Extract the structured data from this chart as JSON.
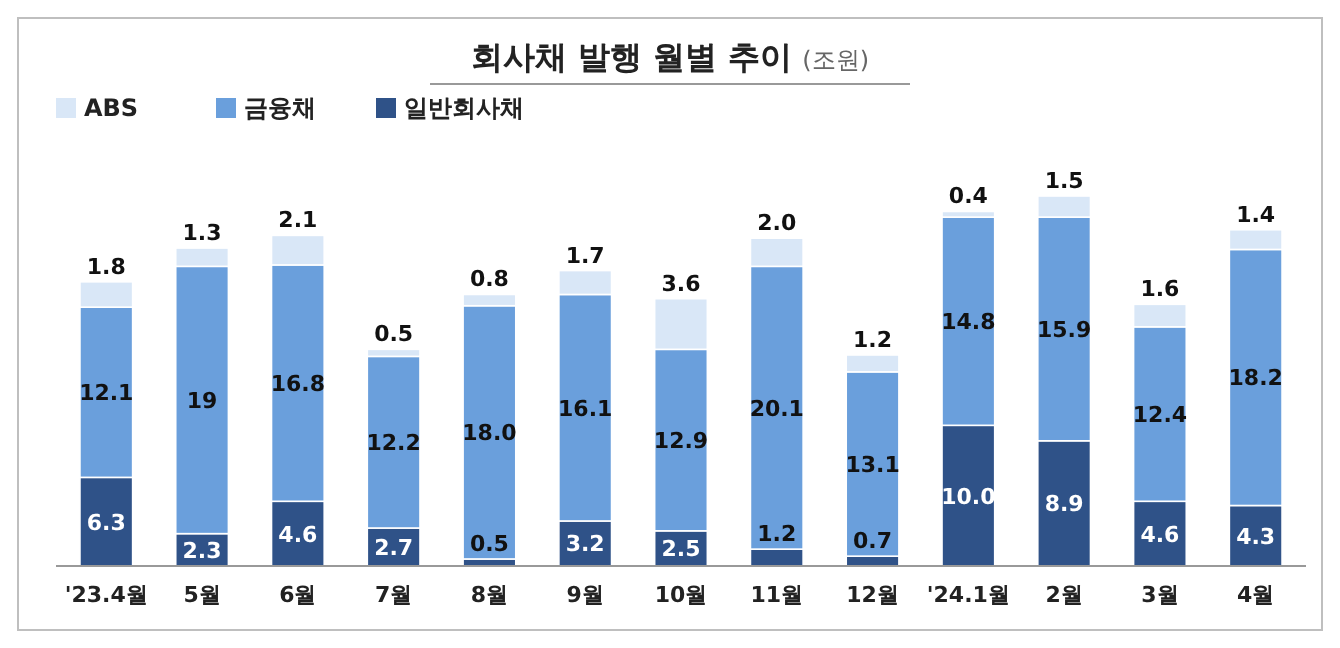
{
  "chart_data": {
    "type": "bar",
    "title": "회사채 발행 월별 추이",
    "subtitle": "(조원)",
    "stacked": true,
    "legend": "top left",
    "categories": [
      "'23.4월",
      "5월",
      "6월",
      "7월",
      "8월",
      "9월",
      "10월",
      "11월",
      "12월",
      "'24.1월",
      "2월",
      "3월",
      "4월"
    ],
    "series": [
      {
        "name": "일반회사채",
        "color": "#2f5288",
        "values": [
          6.3,
          2.3,
          4.6,
          2.7,
          0.5,
          3.2,
          2.5,
          1.2,
          0.7,
          10.0,
          8.9,
          4.6,
          4.3
        ],
        "value_labels": [
          "6.3",
          "2.3",
          "4.6",
          "2.7",
          "0.5",
          "3.2",
          "2.5",
          "1.2",
          "0.7",
          "10.0",
          "8.9",
          "4.6",
          "4.3"
        ]
      },
      {
        "name": "금융채",
        "color": "#6a9fdc",
        "values": [
          12.1,
          19,
          16.8,
          12.2,
          18.0,
          16.1,
          12.9,
          20.1,
          13.1,
          14.8,
          15.9,
          12.4,
          18.2
        ],
        "value_labels": [
          "12.1",
          "19",
          "16.8",
          "12.2",
          "18.0",
          "16.1",
          "12.9",
          "20.1",
          "13.1",
          "14.8",
          "15.9",
          "12.4",
          "18.2"
        ]
      },
      {
        "name": "ABS",
        "color": "#d9e7f7",
        "values": [
          1.8,
          1.3,
          2.1,
          0.5,
          0.8,
          1.7,
          3.6,
          2.0,
          1.2,
          0.4,
          1.5,
          1.6,
          1.4
        ],
        "value_labels": [
          "1.8",
          "1.3",
          "2.1",
          "0.5",
          "0.8",
          "1.7",
          "3.6",
          "2.0",
          "1.2",
          "0.4",
          "1.5",
          "1.6",
          "1.4"
        ]
      }
    ]
  }
}
